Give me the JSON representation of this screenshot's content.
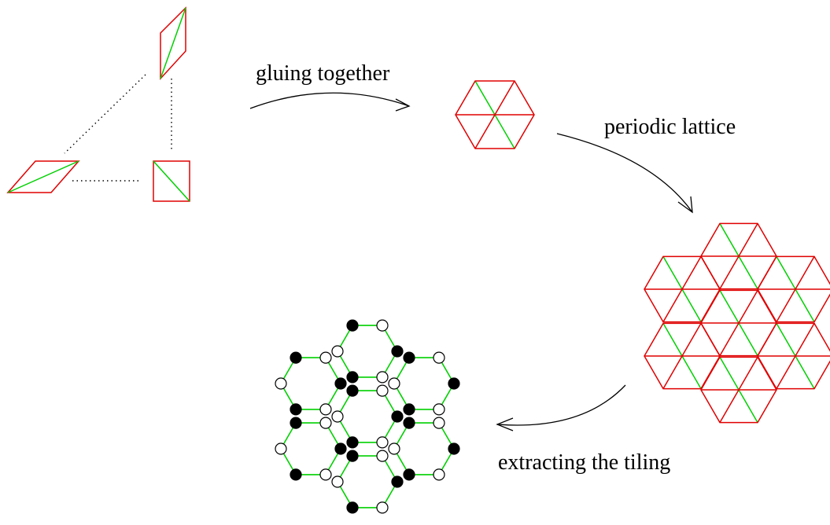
{
  "labels": {
    "gluing": "gluing together",
    "periodic": "periodic lattice",
    "extracting": "extracting the tiling"
  },
  "colors": {
    "rhombus_edge": "#e00000",
    "diagonal": "#00d000",
    "arrow": "#000000",
    "black_vertex": "#000000",
    "white_vertex": "#ffffff"
  },
  "stages": [
    "tile-shapes",
    "hexagon",
    "lattice",
    "honeycomb-tiling"
  ]
}
